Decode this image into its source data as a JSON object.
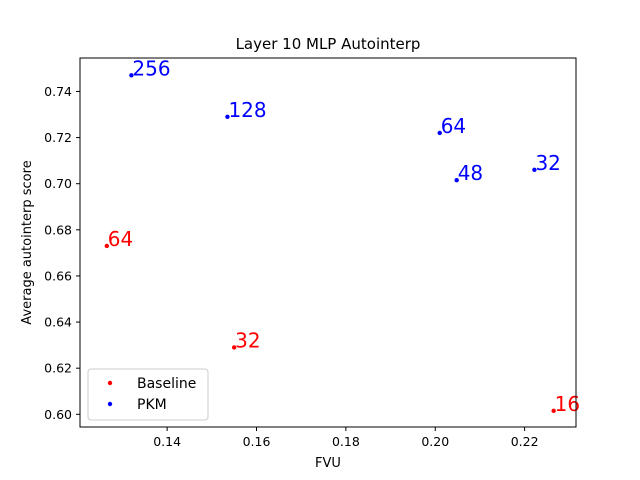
{
  "chart_data": {
    "type": "scatter",
    "title": "Layer 10 MLP Autointerp",
    "xlabel": "FVU",
    "ylabel": "Average autointerp score",
    "xlim": [
      0.1205,
      0.2315
    ],
    "ylim": [
      0.5945,
      0.7545
    ],
    "xticks": [
      "0.14",
      "0.16",
      "0.18",
      "0.20",
      "0.22"
    ],
    "yticks": [
      "0.60",
      "0.62",
      "0.64",
      "0.66",
      "0.68",
      "0.70",
      "0.72",
      "0.74"
    ],
    "grid": false,
    "legend_position": "lower-left",
    "series": [
      {
        "name": "Baseline",
        "color": "#ff0000",
        "points": [
          {
            "x": 0.1265,
            "y": 0.673,
            "label": "64"
          },
          {
            "x": 0.155,
            "y": 0.629,
            "label": "32"
          },
          {
            "x": 0.2265,
            "y": 0.6015,
            "label": "16"
          }
        ]
      },
      {
        "name": "PKM",
        "color": "#0000ff",
        "points": [
          {
            "x": 0.132,
            "y": 0.747,
            "label": "256"
          },
          {
            "x": 0.1535,
            "y": 0.729,
            "label": "128"
          },
          {
            "x": 0.201,
            "y": 0.722,
            "label": "64"
          },
          {
            "x": 0.2048,
            "y": 0.7015,
            "label": "48"
          },
          {
            "x": 0.2222,
            "y": 0.706,
            "label": "32"
          }
        ]
      }
    ]
  }
}
